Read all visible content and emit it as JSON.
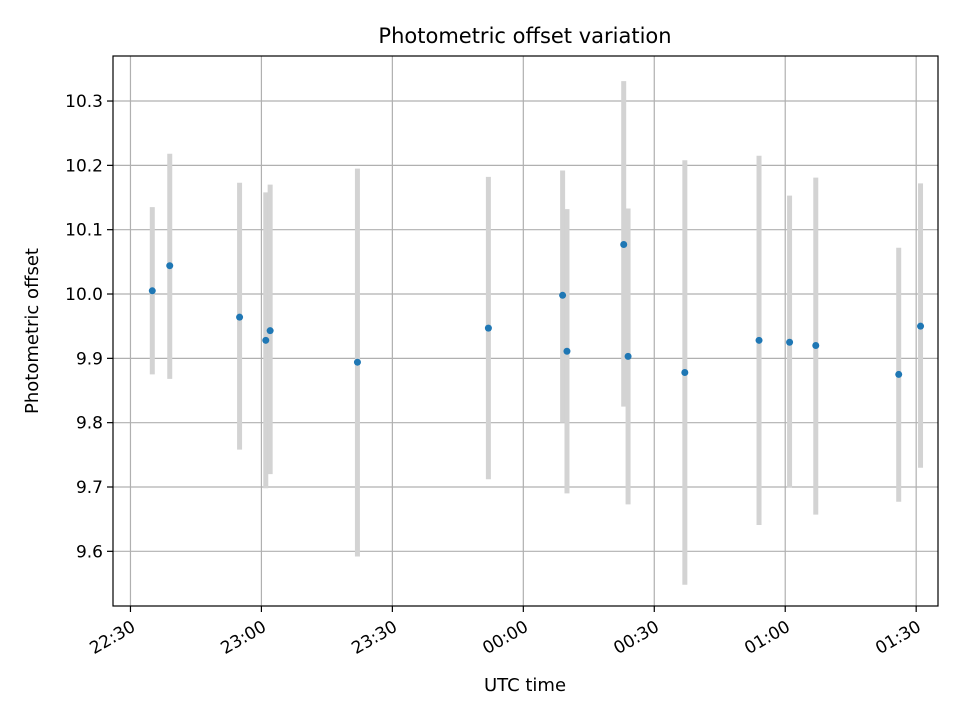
{
  "chart_data": {
    "type": "scatter",
    "title": "Photometric offset variation",
    "xlabel": "UTC time",
    "ylabel": "Photometric offset",
    "x_axis_kind": "time",
    "x_start_time": "22:26",
    "x_end_time": "01:35",
    "xlim_minutes_from_2230": [
      -4,
      185
    ],
    "ylim": [
      9.515,
      10.37
    ],
    "x_ticks": [
      {
        "label": "22:30",
        "minutes": 0
      },
      {
        "label": "23:00",
        "minutes": 30
      },
      {
        "label": "23:30",
        "minutes": 60
      },
      {
        "label": "00:00",
        "minutes": 90
      },
      {
        "label": "00:30",
        "minutes": 120
      },
      {
        "label": "01:00",
        "minutes": 150
      },
      {
        "label": "01:30",
        "minutes": 180
      }
    ],
    "y_ticks": [
      {
        "label": "9.6",
        "value": 9.6
      },
      {
        "label": "9.7",
        "value": 9.7
      },
      {
        "label": "9.8",
        "value": 9.8
      },
      {
        "label": "9.9",
        "value": 9.9
      },
      {
        "label": "10.0",
        "value": 10.0
      },
      {
        "label": "10.1",
        "value": 10.1
      },
      {
        "label": "10.2",
        "value": 10.2
      },
      {
        "label": "10.3",
        "value": 10.3
      }
    ],
    "grid": true,
    "errorbar_color": "#d3d3d3",
    "point_color": "#1f77b4",
    "series": [
      {
        "points": [
          {
            "time": "22:35",
            "y": 10.005,
            "ylow": 9.875,
            "yhigh": 10.135
          },
          {
            "time": "22:39",
            "y": 10.044,
            "ylow": 9.868,
            "yhigh": 10.218
          },
          {
            "time": "22:55",
            "y": 9.964,
            "ylow": 9.758,
            "yhigh": 10.173
          },
          {
            "time": "23:01",
            "y": 9.928,
            "ylow": 9.698,
            "yhigh": 10.158
          },
          {
            "time": "23:02",
            "y": 9.943,
            "ylow": 9.72,
            "yhigh": 10.17
          },
          {
            "time": "23:22",
            "y": 9.894,
            "ylow": 9.592,
            "yhigh": 10.195
          },
          {
            "time": "23:52",
            "y": 9.947,
            "ylow": 9.712,
            "yhigh": 10.182
          },
          {
            "time": "00:09",
            "y": 9.998,
            "ylow": 9.8,
            "yhigh": 10.192
          },
          {
            "time": "00:10",
            "y": 9.911,
            "ylow": 9.69,
            "yhigh": 10.132
          },
          {
            "time": "00:23",
            "y": 10.077,
            "ylow": 9.825,
            "yhigh": 10.331
          },
          {
            "time": "00:24",
            "y": 9.903,
            "ylow": 9.673,
            "yhigh": 10.133
          },
          {
            "time": "00:37",
            "y": 9.878,
            "ylow": 9.548,
            "yhigh": 10.208
          },
          {
            "time": "00:54",
            "y": 9.928,
            "ylow": 9.641,
            "yhigh": 10.215
          },
          {
            "time": "01:01",
            "y": 9.925,
            "ylow": 9.699,
            "yhigh": 10.153
          },
          {
            "time": "01:07",
            "y": 9.92,
            "ylow": 9.657,
            "yhigh": 10.181
          },
          {
            "time": "01:26",
            "y": 9.875,
            "ylow": 9.677,
            "yhigh": 10.072
          },
          {
            "time": "01:31",
            "y": 9.95,
            "ylow": 9.73,
            "yhigh": 10.172
          }
        ]
      }
    ]
  }
}
